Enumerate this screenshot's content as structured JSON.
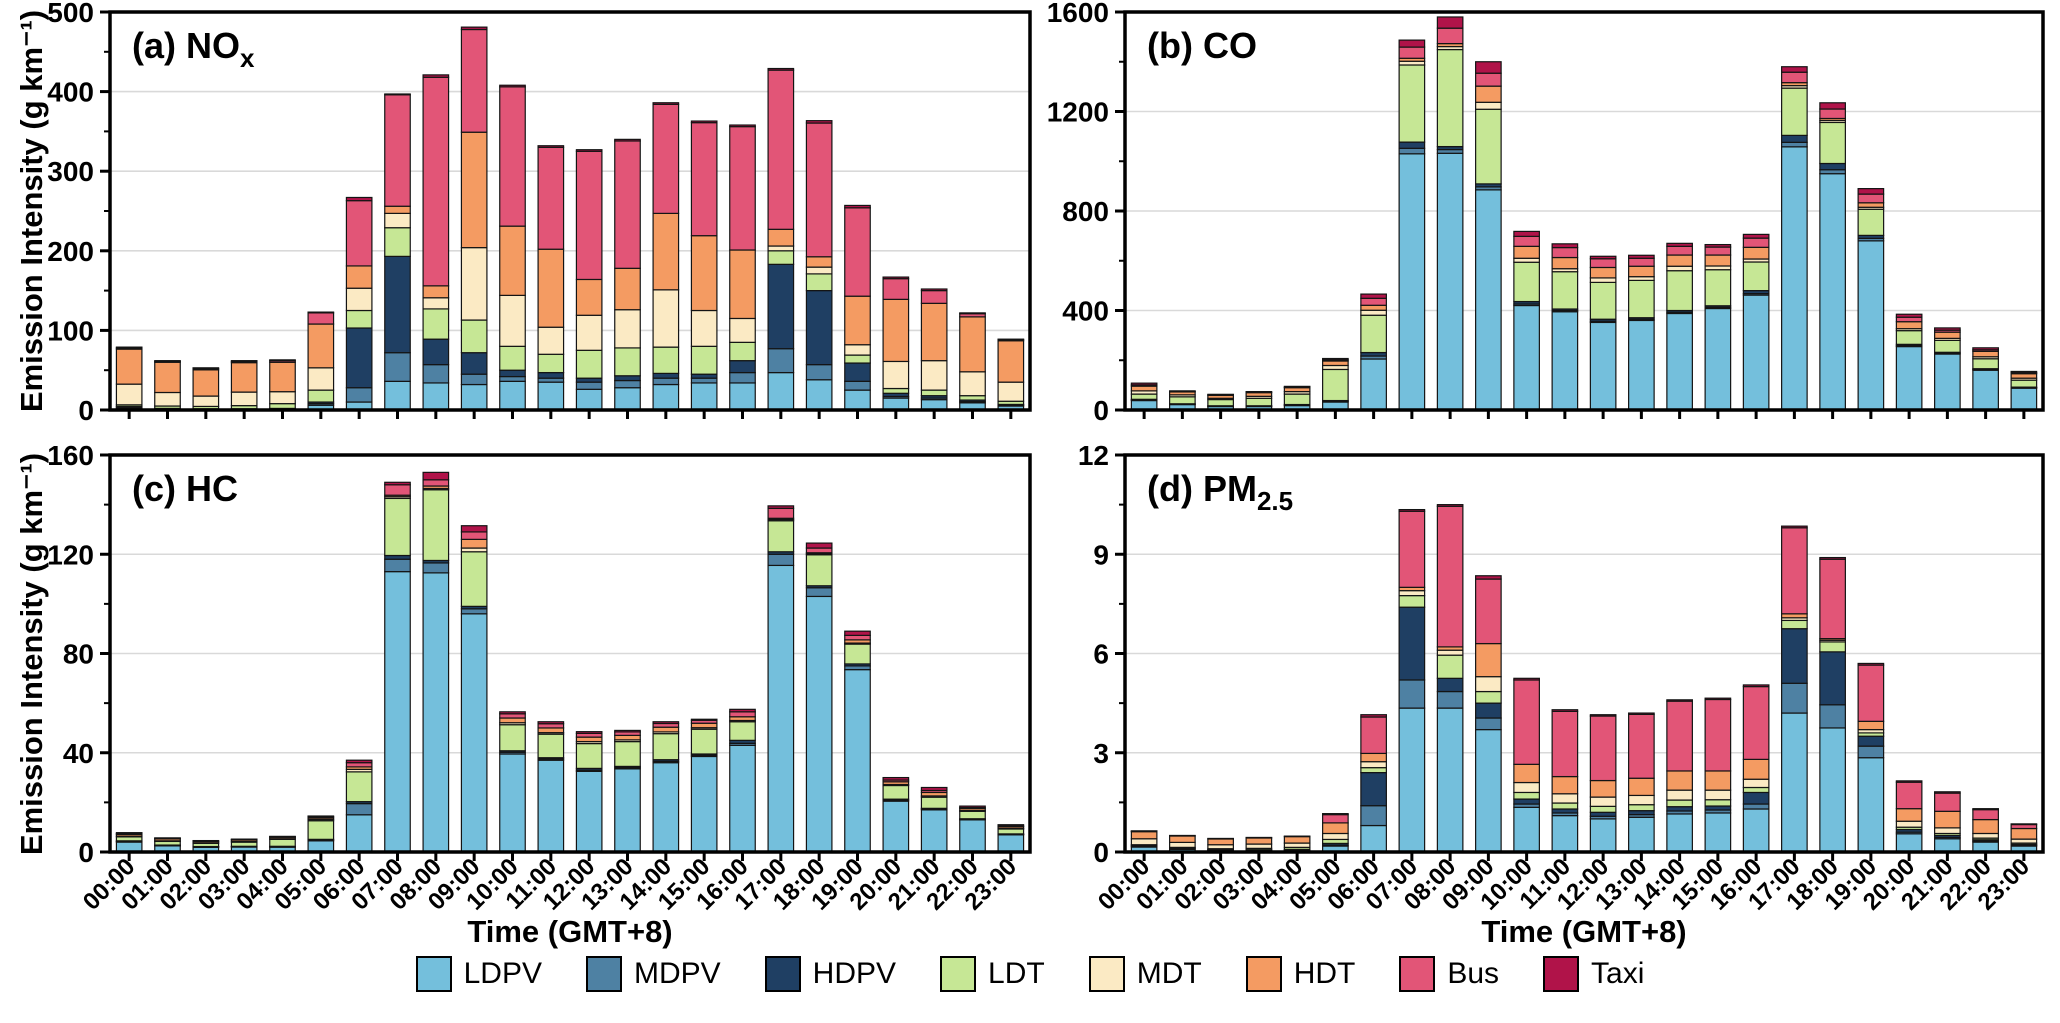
{
  "figure": {
    "ylabel": "Emission Intensity (g km⁻¹)",
    "xlabel": "Time (GMT+8)"
  },
  "hours": [
    "00:00",
    "01:00",
    "02:00",
    "03:00",
    "04:00",
    "05:00",
    "06:00",
    "07:00",
    "08:00",
    "09:00",
    "10:00",
    "11:00",
    "12:00",
    "13:00",
    "14:00",
    "15:00",
    "16:00",
    "17:00",
    "18:00",
    "19:00",
    "20:00",
    "21:00",
    "22:00",
    "23:00"
  ],
  "legend": [
    {
      "label": "LDPV",
      "color": "#74BFDC"
    },
    {
      "label": "MDPV",
      "color": "#4E81A3"
    },
    {
      "label": "HDPV",
      "color": "#1F3F63"
    },
    {
      "label": "LDT",
      "color": "#C6E795"
    },
    {
      "label": "MDT",
      "color": "#FBEAC4"
    },
    {
      "label": "HDT",
      "color": "#F49B62"
    },
    {
      "label": "Bus",
      "color": "#E25577"
    },
    {
      "label": "Taxi",
      "color": "#B01349"
    }
  ],
  "chart_data": [
    {
      "id": "a",
      "type": "bar",
      "stacked": true,
      "title_main": "(a) NO",
      "title_sub": "x",
      "ylabel": "Emission Intensity (g km⁻¹)",
      "xlabel": "Time (GMT+8)",
      "ylim": [
        0,
        500
      ],
      "yticks": [
        0,
        100,
        200,
        300,
        400,
        500
      ],
      "grid": true,
      "legend_position": "bottom",
      "categories": [
        "00:00",
        "01:00",
        "02:00",
        "03:00",
        "04:00",
        "05:00",
        "06:00",
        "07:00",
        "08:00",
        "09:00",
        "10:00",
        "11:00",
        "12:00",
        "13:00",
        "14:00",
        "15:00",
        "16:00",
        "17:00",
        "18:00",
        "19:00",
        "20:00",
        "21:00",
        "22:00",
        "23:00"
      ],
      "series": [
        {
          "name": "LDPV",
          "values": [
            2,
            1,
            0.8,
            0.8,
            1,
            6,
            10,
            36,
            34,
            32,
            36,
            35,
            26,
            28,
            32,
            34,
            34,
            47,
            38,
            25,
            15,
            13,
            9,
            5
          ]
        },
        {
          "name": "MDPV",
          "values": [
            1.5,
            0.5,
            0.4,
            0.4,
            0.5,
            2,
            18,
            36,
            23,
            13,
            6,
            5,
            9,
            9,
            8,
            6,
            13,
            30,
            19,
            11,
            2,
            2,
            1.5,
            1
          ]
        },
        {
          "name": "HDPV",
          "values": [
            1,
            0.5,
            0.3,
            0.3,
            0.5,
            2,
            75,
            121,
            32,
            27,
            8,
            7,
            5,
            6,
            6,
            5,
            15,
            106,
            93,
            23,
            4,
            3,
            2,
            1
          ]
        },
        {
          "name": "LDT",
          "values": [
            2,
            3,
            3,
            4,
            6,
            15,
            22,
            36,
            38,
            41,
            30,
            23,
            35,
            35,
            33,
            35,
            23,
            17,
            21,
            10,
            6,
            7,
            5.5,
            4
          ]
        },
        {
          "name": "MDT",
          "values": [
            26,
            17,
            13,
            17,
            15,
            28,
            28,
            18,
            14,
            91,
            64,
            34,
            44,
            48,
            72,
            45,
            30,
            6,
            8.5,
            13,
            34,
            37,
            30,
            24
          ]
        },
        {
          "name": "HDT",
          "values": [
            44,
            38,
            33,
            37,
            37,
            55,
            28,
            9,
            15,
            145,
            87,
            98,
            45,
            52,
            96,
            94,
            86,
            21,
            13,
            61,
            78,
            72,
            69,
            52
          ]
        },
        {
          "name": "Bus",
          "values": [
            1.5,
            1,
            1.5,
            1.5,
            2,
            14,
            82,
            140,
            262,
            129,
            175,
            128,
            161,
            160,
            137,
            142,
            155,
            200,
            168,
            111,
            26,
            16,
            4,
            1.5
          ]
        },
        {
          "name": "Taxi",
          "values": [
            1,
            1,
            1,
            1,
            1,
            1,
            4,
            1,
            3,
            3,
            2,
            2,
            2,
            2,
            2,
            2,
            2,
            2,
            3,
            3,
            2,
            2,
            1,
            0.5
          ]
        }
      ]
    },
    {
      "id": "b",
      "type": "bar",
      "stacked": true,
      "title_main": "(b) CO",
      "title_sub": "",
      "ylabel": "Emission Intensity (g km⁻¹)",
      "xlabel": "Time (GMT+8)",
      "ylim": [
        0,
        1600
      ],
      "yticks": [
        0,
        400,
        800,
        1200,
        1600
      ],
      "grid": true,
      "legend_position": "bottom",
      "categories": [
        "00:00",
        "01:00",
        "02:00",
        "03:00",
        "04:00",
        "05:00",
        "06:00",
        "07:00",
        "08:00",
        "09:00",
        "10:00",
        "11:00",
        "12:00",
        "13:00",
        "14:00",
        "15:00",
        "16:00",
        "17:00",
        "18:00",
        "19:00",
        "20:00",
        "21:00",
        "22:00",
        "23:00"
      ],
      "series": [
        {
          "name": "LDPV",
          "values": [
            38,
            22,
            15,
            15,
            18,
            32,
            205,
            1030,
            1032,
            885,
            420,
            395,
            352,
            360,
            388,
            408,
            462,
            1058,
            950,
            680,
            255,
            225,
            160,
            88
          ]
        },
        {
          "name": "MDPV",
          "values": [
            3,
            2,
            1,
            1,
            2,
            3,
            12,
            22,
            15,
            12,
            6,
            5,
            5,
            5,
            5,
            5,
            6,
            18,
            16,
            10,
            4,
            3,
            3,
            2
          ]
        },
        {
          "name": "HDPV",
          "values": [
            2,
            1,
            1,
            1,
            2,
            3,
            14,
            25,
            12,
            12,
            10,
            6,
            8,
            6,
            7,
            6,
            12,
            28,
            25,
            12,
            5,
            4,
            3,
            2
          ]
        },
        {
          "name": "LDT",
          "values": [
            21,
            28,
            25,
            30,
            42,
            125,
            150,
            310,
            390,
            300,
            158,
            150,
            148,
            150,
            160,
            145,
            115,
            190,
            165,
            105,
            55,
            48,
            40,
            28
          ]
        },
        {
          "name": "MDT",
          "values": [
            13,
            8,
            5,
            8,
            10,
            16,
            20,
            15,
            12,
            28,
            16,
            12,
            18,
            15,
            18,
            15,
            12,
            10,
            8,
            8,
            8,
            8,
            8,
            8
          ]
        },
        {
          "name": "HDT",
          "values": [
            19,
            12,
            12,
            15,
            16,
            18,
            20,
            12,
            12,
            65,
            48,
            45,
            42,
            42,
            45,
            44,
            47,
            12,
            8,
            18,
            28,
            25,
            22,
            18
          ]
        },
        {
          "name": "Bus",
          "values": [
            5,
            2,
            2,
            2,
            2,
            5,
            28,
            45,
            62,
            52,
            40,
            40,
            35,
            32,
            35,
            32,
            37,
            42,
            38,
            35,
            18,
            8,
            6,
            4
          ]
        },
        {
          "name": "Taxi",
          "values": [
            7,
            2,
            2,
            2,
            3,
            5,
            17,
            28,
            45,
            46,
            20,
            15,
            10,
            12,
            12,
            10,
            15,
            22,
            25,
            22,
            12,
            9,
            8,
            5
          ]
        }
      ]
    },
    {
      "id": "c",
      "type": "bar",
      "stacked": true,
      "title_main": "(c) HC",
      "title_sub": "",
      "ylabel": "Emission Intensity (g km⁻¹)",
      "xlabel": "Time (GMT+8)",
      "ylim": [
        0,
        160
      ],
      "yticks": [
        0,
        40,
        80,
        120,
        160
      ],
      "grid": true,
      "legend_position": "bottom",
      "categories": [
        "00:00",
        "01:00",
        "02:00",
        "03:00",
        "04:00",
        "05:00",
        "06:00",
        "07:00",
        "08:00",
        "09:00",
        "10:00",
        "11:00",
        "12:00",
        "13:00",
        "14:00",
        "15:00",
        "16:00",
        "17:00",
        "18:00",
        "19:00",
        "20:00",
        "21:00",
        "22:00",
        "23:00"
      ],
      "series": [
        {
          "name": "LDPV",
          "values": [
            4,
            2.5,
            2,
            2.1,
            2,
            4.5,
            15,
            113,
            112.5,
            96,
            39.5,
            37,
            32.5,
            33.5,
            36,
            38.5,
            43,
            115.5,
            103,
            73.5,
            20.5,
            17,
            13,
            7
          ]
        },
        {
          "name": "MDPV",
          "values": [
            0.3,
            0.2,
            0.1,
            0.1,
            0.15,
            0.3,
            4.5,
            5,
            4,
            2,
            0.7,
            0.5,
            0.5,
            0.5,
            0.5,
            0.5,
            0.8,
            4.5,
            3.5,
            1.5,
            0.4,
            0.3,
            0.2,
            0.15
          ]
        },
        {
          "name": "HDPV",
          "values": [
            0.2,
            0.1,
            0.1,
            0.1,
            0.15,
            0.3,
            0.8,
            1.5,
            1,
            1,
            0.6,
            0.5,
            0.7,
            0.5,
            0.7,
            0.5,
            1.2,
            1,
            0.8,
            0.8,
            0.4,
            0.3,
            0.2,
            0.15
          ]
        },
        {
          "name": "LDT",
          "values": [
            1.6,
            1.5,
            1.3,
            1.7,
            2.8,
            7.5,
            12,
            23,
            28.5,
            22,
            10.5,
            9.5,
            10,
            10,
            10.5,
            10,
            7.5,
            12.5,
            12.5,
            8,
            5.5,
            4.5,
            3,
            2
          ]
        },
        {
          "name": "MDT",
          "values": [
            0.3,
            0.2,
            0.2,
            0.2,
            0.25,
            0.5,
            1,
            0.7,
            0.5,
            1.5,
            0.8,
            0.6,
            0.8,
            0.7,
            0.7,
            0.6,
            0.5,
            0.5,
            0.4,
            0.4,
            0.4,
            0.5,
            0.3,
            0.2
          ]
        },
        {
          "name": "HDT",
          "values": [
            0.7,
            0.8,
            0.6,
            0.7,
            0.7,
            0.6,
            1,
            0.6,
            1,
            3.5,
            1.9,
            1.9,
            1.8,
            1.8,
            1.9,
            1.8,
            1.5,
            0.5,
            0.4,
            1.3,
            1.1,
            1.4,
            0.8,
            0.7
          ]
        },
        {
          "name": "Bus",
          "values": [
            0.3,
            0.2,
            0.15,
            0.15,
            0.1,
            0.5,
            1.7,
            4.2,
            2.5,
            3,
            1.7,
            1.7,
            1.5,
            1.4,
            1.5,
            1.2,
            2,
            4,
            1.9,
            1.8,
            0.7,
            0.8,
            0.4,
            0.3
          ]
        },
        {
          "name": "Taxi",
          "values": [
            0.4,
            0.2,
            0.15,
            0.15,
            0.15,
            0.3,
            1,
            1,
            3,
            2.5,
            0.8,
            0.8,
            0.7,
            0.6,
            0.7,
            0.4,
            1,
            1,
            2,
            1.7,
            1,
            1.2,
            0.6,
            0.5
          ]
        }
      ]
    },
    {
      "id": "d",
      "type": "bar",
      "stacked": true,
      "title_main": "(d) PM",
      "title_sub": "2.5",
      "ylabel": "Emission Intensity (g km⁻¹)",
      "xlabel": "Time (GMT+8)",
      "ylim": [
        0,
        12
      ],
      "yticks": [
        0,
        3,
        6,
        9,
        12
      ],
      "grid": true,
      "legend_position": "bottom",
      "categories": [
        "00:00",
        "01:00",
        "02:00",
        "03:00",
        "04:00",
        "05:00",
        "06:00",
        "07:00",
        "08:00",
        "09:00",
        "10:00",
        "11:00",
        "12:00",
        "13:00",
        "14:00",
        "15:00",
        "16:00",
        "17:00",
        "18:00",
        "19:00",
        "20:00",
        "21:00",
        "22:00",
        "23:00"
      ],
      "series": [
        {
          "name": "LDPV",
          "values": [
            0.15,
            0.08,
            0.05,
            0.05,
            0.05,
            0.18,
            0.8,
            4.35,
            4.35,
            3.7,
            1.35,
            1.1,
            1,
            1.05,
            1.15,
            1.18,
            1.3,
            4.2,
            3.75,
            2.85,
            0.55,
            0.4,
            0.3,
            0.18
          ]
        },
        {
          "name": "MDPV",
          "values": [
            0.02,
            0.02,
            0.01,
            0.01,
            0.01,
            0.03,
            0.6,
            0.85,
            0.5,
            0.35,
            0.1,
            0.08,
            0.08,
            0.08,
            0.09,
            0.09,
            0.15,
            0.9,
            0.7,
            0.35,
            0.05,
            0.04,
            0.03,
            0.02
          ]
        },
        {
          "name": "HDPV",
          "values": [
            0.03,
            0.02,
            0.01,
            0.01,
            0.02,
            0.05,
            1,
            2.2,
            0.4,
            0.45,
            0.15,
            0.12,
            0.12,
            0.12,
            0.13,
            0.12,
            0.35,
            1.65,
            1.6,
            0.3,
            0.08,
            0.06,
            0.04,
            0.03
          ]
        },
        {
          "name": "LDT",
          "values": [
            0.02,
            0.02,
            0.03,
            0.04,
            0.06,
            0.12,
            0.15,
            0.35,
            0.7,
            0.35,
            0.2,
            0.18,
            0.18,
            0.18,
            0.2,
            0.19,
            0.15,
            0.25,
            0.3,
            0.1,
            0.07,
            0.06,
            0.05,
            0.04
          ]
        },
        {
          "name": "MDT",
          "values": [
            0.18,
            0.15,
            0.12,
            0.13,
            0.13,
            0.18,
            0.18,
            0.15,
            0.15,
            0.45,
            0.3,
            0.28,
            0.28,
            0.28,
            0.3,
            0.29,
            0.25,
            0.08,
            0.05,
            0.1,
            0.18,
            0.17,
            0.14,
            0.12
          ]
        },
        {
          "name": "HDT",
          "values": [
            0.22,
            0.2,
            0.18,
            0.19,
            0.2,
            0.32,
            0.25,
            0.1,
            0.1,
            1,
            0.55,
            0.52,
            0.5,
            0.52,
            0.58,
            0.58,
            0.6,
            0.12,
            0.05,
            0.25,
            0.38,
            0.5,
            0.42,
            0.32
          ]
        },
        {
          "name": "Bus",
          "values": [
            0.01,
            0,
            0,
            0,
            0,
            0.25,
            1.1,
            2.3,
            4.25,
            1.95,
            2.55,
            1.97,
            1.95,
            1.93,
            2.11,
            2.16,
            2.2,
            2.6,
            2.4,
            1.7,
            0.8,
            0.55,
            0.3,
            0.12
          ]
        },
        {
          "name": "Taxi",
          "values": [
            0.01,
            0.01,
            0.01,
            0.01,
            0.01,
            0.03,
            0.07,
            0.05,
            0.05,
            0.1,
            0.05,
            0.05,
            0.04,
            0.04,
            0.04,
            0.04,
            0.05,
            0.05,
            0.05,
            0.05,
            0.04,
            0.04,
            0.03,
            0.02
          ]
        }
      ]
    }
  ]
}
